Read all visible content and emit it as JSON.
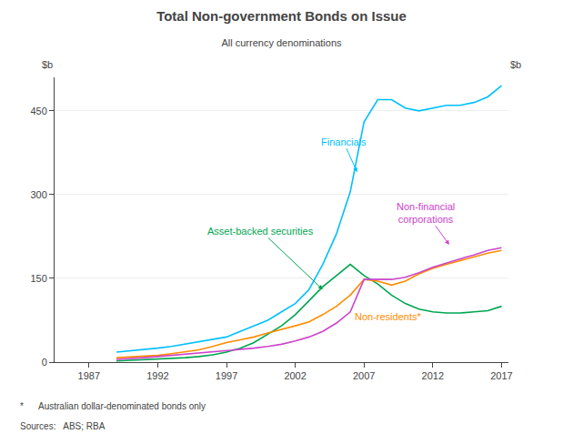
{
  "chart_data": {
    "type": "line",
    "title": "Total Non-government Bonds on Issue",
    "subtitle": "All currency denominations",
    "ylabel": "$b",
    "y2label": "$b",
    "footnotes": [
      "*      Australian dollar-denominated bonds only",
      "Sources:   ABS; RBA"
    ],
    "x": [
      1989,
      1990,
      1991,
      1992,
      1993,
      1994,
      1995,
      1996,
      1997,
      1998,
      1999,
      2000,
      2001,
      2002,
      2003,
      2004,
      2005,
      2006,
      2007,
      2008,
      2009,
      2010,
      2011,
      2012,
      2013,
      2014,
      2015,
      2016,
      2017
    ],
    "series": [
      {
        "name": "Financials",
        "color": "#00BFFF",
        "values": [
          18,
          20,
          22,
          25,
          28,
          32,
          36,
          40,
          45,
          55,
          65,
          75,
          90,
          105,
          130,
          175,
          230,
          305,
          430,
          470,
          470,
          455,
          450,
          455,
          460,
          460,
          465,
          475,
          495
        ]
      },
      {
        "name": "Asset-backed securities",
        "color": "#00A550",
        "values": [
          2,
          3,
          4,
          5,
          6,
          8,
          10,
          13,
          18,
          25,
          35,
          50,
          65,
          85,
          110,
          135,
          155,
          175,
          155,
          140,
          120,
          105,
          95,
          90,
          88,
          88,
          90,
          92,
          100
        ]
      },
      {
        "name": "Non-residents*",
        "color": "#FF8C00",
        "values": [
          8,
          9,
          10,
          12,
          15,
          18,
          22,
          28,
          35,
          40,
          45,
          52,
          58,
          65,
          72,
          85,
          100,
          120,
          148,
          145,
          138,
          145,
          158,
          168,
          175,
          182,
          188,
          195,
          200
        ]
      },
      {
        "name": "Non-financial\ncorporations",
        "color": "#CC44CC",
        "values": [
          5,
          6,
          8,
          10,
          12,
          14,
          16,
          18,
          20,
          22,
          25,
          28,
          32,
          38,
          45,
          55,
          70,
          90,
          148,
          148,
          148,
          152,
          160,
          170,
          178,
          185,
          192,
          200,
          205
        ]
      }
    ],
    "xlim": [
      1984.5,
      2017.5
    ],
    "xticks": [
      1987,
      1992,
      1997,
      2002,
      2007,
      2012,
      2017
    ],
    "ylim": [
      0,
      510
    ],
    "yticks": [
      0,
      150,
      300,
      450
    ],
    "y2lim": [
      0,
      510
    ],
    "y2ticks": [
      0,
      150,
      300,
      450
    ],
    "grid": true
  }
}
